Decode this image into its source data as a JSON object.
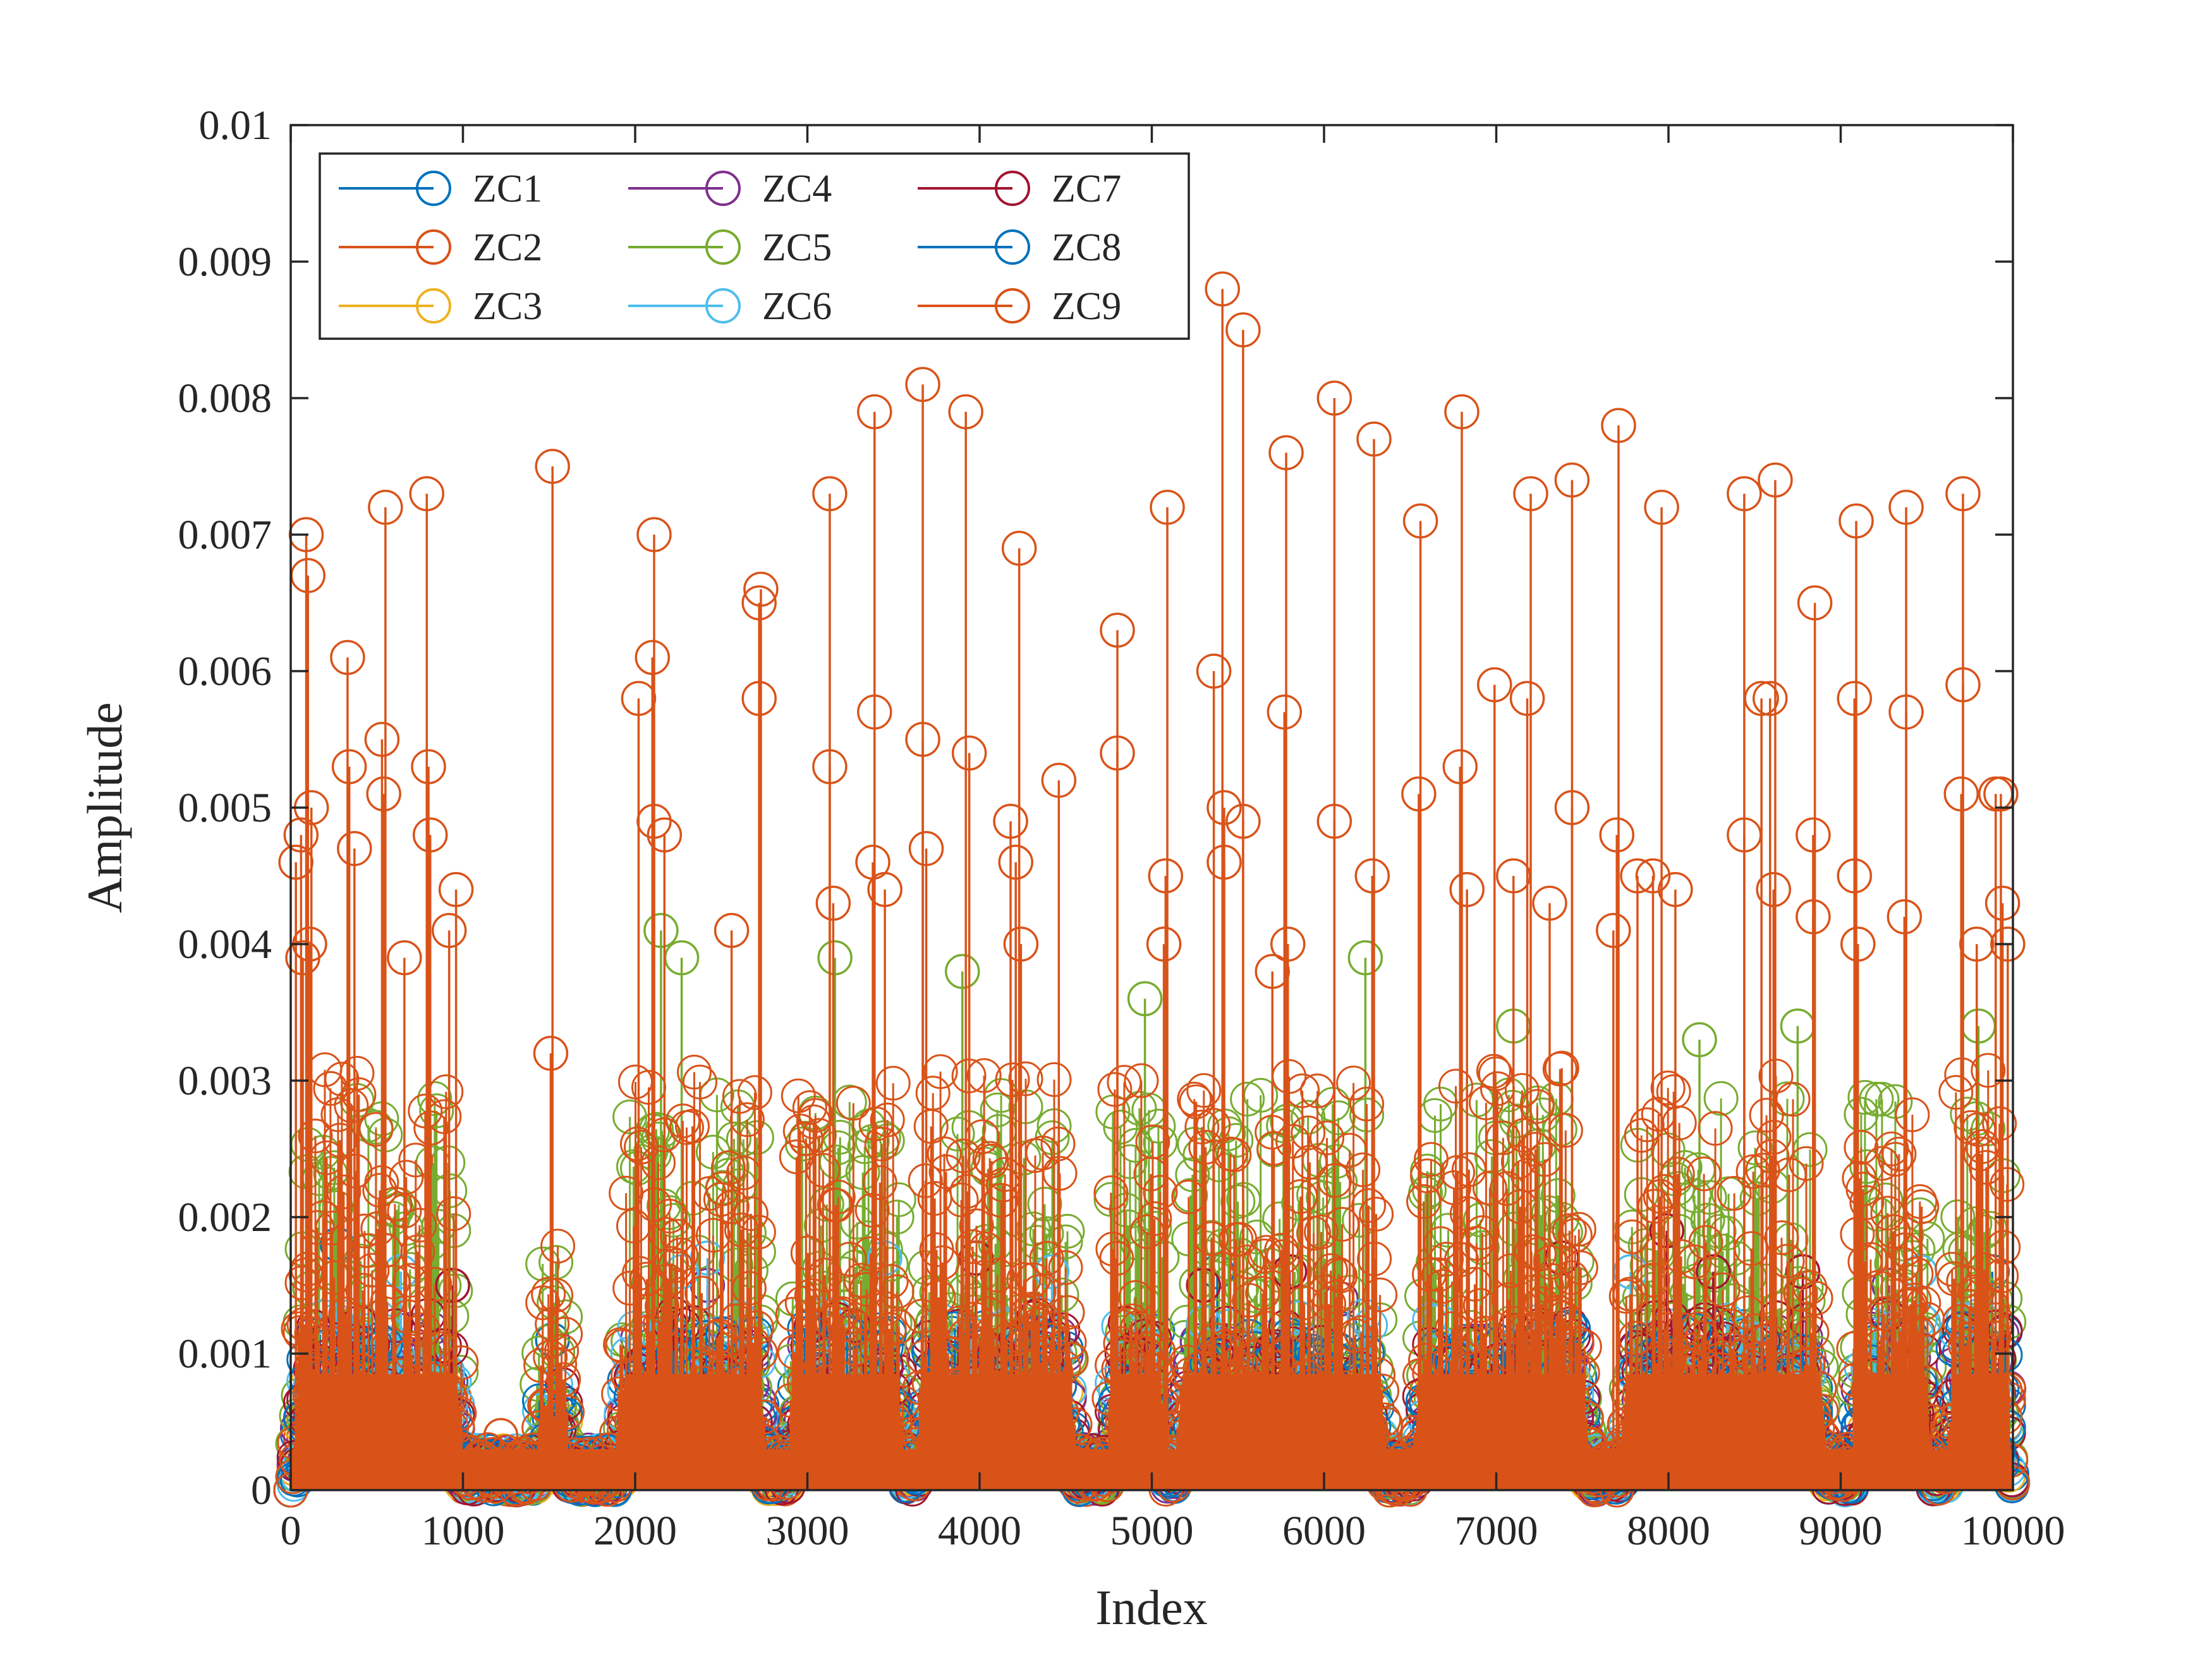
{
  "chart_data": {
    "type": "stem",
    "title": "",
    "xlabel": "Index",
    "ylabel": "Amplitude",
    "xlim": [
      0,
      10000
    ],
    "ylim": [
      0,
      0.01
    ],
    "xticks": [
      0,
      1000,
      2000,
      3000,
      4000,
      5000,
      6000,
      7000,
      8000,
      9000,
      10000
    ],
    "xtick_labels": [
      "0",
      "1000",
      "2000",
      "3000",
      "4000",
      "5000",
      "6000",
      "7000",
      "8000",
      "9000",
      "10000"
    ],
    "yticks": [
      0,
      0.001,
      0.002,
      0.003,
      0.004,
      0.005,
      0.006,
      0.007,
      0.008,
      0.009,
      0.01
    ],
    "ytick_labels": [
      "0",
      "0.001",
      "0.002",
      "0.003",
      "0.004",
      "0.005",
      "0.006",
      "0.007",
      "0.008",
      "0.009",
      "0.01"
    ],
    "grid": false,
    "legend_position": "top-left",
    "legend_columns": 3,
    "active_segments": [
      [
        0,
        1020
      ],
      [
        1420,
        1620
      ],
      [
        1880,
        2780
      ],
      [
        2880,
        3580
      ],
      [
        3620,
        4580
      ],
      [
        4740,
        5080
      ],
      [
        5120,
        6380
      ],
      [
        6500,
        7560
      ],
      [
        7700,
        8940
      ],
      [
        9060,
        9540
      ],
      [
        9620,
        10000
      ]
    ],
    "series": [
      {
        "name": "ZC1",
        "color": "#0072BD",
        "typical_peak": 0.0012,
        "max": 0.0018,
        "peaks": [
          [
            270,
            0.0018
          ],
          [
            1520,
            0.0011
          ],
          [
            5380,
            0.0016
          ],
          [
            9880,
            0.0016
          ]
        ]
      },
      {
        "name": "ZC2",
        "color": "#D95319",
        "typical_peak": 0.0011,
        "max": 0.0013,
        "peaks": []
      },
      {
        "name": "ZC3",
        "color": "#EDB120",
        "typical_peak": 0.0009,
        "max": 0.0011,
        "peaks": []
      },
      {
        "name": "ZC4",
        "color": "#7E2F8E",
        "typical_peak": 0.0012,
        "max": 0.0015,
        "peaks": [
          [
            2420,
            0.0015
          ],
          [
            6100,
            0.0014
          ],
          [
            9280,
            0.0015
          ]
        ]
      },
      {
        "name": "ZC5",
        "color": "#77AC30",
        "typical_peak": 0.0029,
        "max": 0.0041,
        "peaks": [
          [
            2150,
            0.0041
          ],
          [
            2270,
            0.0039
          ],
          [
            3160,
            0.0039
          ],
          [
            3900,
            0.0038
          ],
          [
            4960,
            0.0036
          ],
          [
            6240,
            0.0039
          ],
          [
            7100,
            0.0034
          ],
          [
            8180,
            0.0033
          ],
          [
            8750,
            0.0034
          ],
          [
            9800,
            0.0034
          ]
        ]
      },
      {
        "name": "ZC6",
        "color": "#4DBEEE",
        "typical_peak": 0.0013,
        "max": 0.0017,
        "peaks": [
          [
            640,
            0.0016
          ],
          [
            2270,
            0.0016
          ],
          [
            2420,
            0.0017
          ],
          [
            3450,
            0.0017
          ],
          [
            4420,
            0.0016
          ],
          [
            7780,
            0.0016
          ],
          [
            9460,
            0.0016
          ]
        ]
      },
      {
        "name": "ZC7",
        "color": "#A2142F",
        "typical_peak": 0.0013,
        "max": 0.0019,
        "peaks": [
          [
            940,
            0.0015
          ],
          [
            3980,
            0.0017
          ],
          [
            5300,
            0.0015
          ],
          [
            5800,
            0.0016
          ],
          [
            7380,
            0.0017
          ],
          [
            7990,
            0.0019
          ],
          [
            8260,
            0.0016
          ],
          [
            8780,
            0.0016
          ]
        ]
      },
      {
        "name": "ZC8",
        "color": "#0072BD",
        "typical_peak": 0.0012,
        "max": 0.0015,
        "peaks": []
      },
      {
        "name": "ZC9",
        "color": "#D95319",
        "typical_peak": 0.0031,
        "max": 0.0088,
        "peaks": [
          [
            30,
            0.0046
          ],
          [
            60,
            0.0048
          ],
          [
            90,
            0.007
          ],
          [
            100,
            0.0067
          ],
          [
            70,
            0.0039
          ],
          [
            120,
            0.005
          ],
          [
            110,
            0.004
          ],
          [
            330,
            0.0061
          ],
          [
            340,
            0.0053
          ],
          [
            370,
            0.0047
          ],
          [
            550,
            0.0072
          ],
          [
            530,
            0.0055
          ],
          [
            540,
            0.0051
          ],
          [
            790,
            0.0073
          ],
          [
            800,
            0.0053
          ],
          [
            810,
            0.0048
          ],
          [
            660,
            0.0039
          ],
          [
            960,
            0.0044
          ],
          [
            920,
            0.0041
          ],
          [
            1520,
            0.0075
          ],
          [
            1510,
            0.0032
          ],
          [
            1220,
            0.0004
          ],
          [
            2020,
            0.0058
          ],
          [
            2110,
            0.007
          ],
          [
            2100,
            0.0061
          ],
          [
            2110,
            0.0049
          ],
          [
            2170,
            0.0048
          ],
          [
            2560,
            0.0041
          ],
          [
            2720,
            0.0065
          ],
          [
            2730,
            0.0066
          ],
          [
            2720,
            0.0058
          ],
          [
            3130,
            0.0073
          ],
          [
            3130,
            0.0053
          ],
          [
            3150,
            0.0043
          ],
          [
            3390,
            0.0079
          ],
          [
            3390,
            0.0057
          ],
          [
            3380,
            0.0046
          ],
          [
            3450,
            0.0044
          ],
          [
            3670,
            0.0081
          ],
          [
            3670,
            0.0055
          ],
          [
            3690,
            0.0047
          ],
          [
            3920,
            0.0079
          ],
          [
            3940,
            0.0054
          ],
          [
            4230,
            0.0069
          ],
          [
            4210,
            0.0046
          ],
          [
            4180,
            0.0049
          ],
          [
            4240,
            0.004
          ],
          [
            4460,
            0.0052
          ],
          [
            4800,
            0.0063
          ],
          [
            4800,
            0.0054
          ],
          [
            5090,
            0.0072
          ],
          [
            5080,
            0.0045
          ],
          [
            5070,
            0.004
          ],
          [
            5360,
            0.006
          ],
          [
            5410,
            0.0088
          ],
          [
            5420,
            0.005
          ],
          [
            5420,
            0.0046
          ],
          [
            5530,
            0.0085
          ],
          [
            5530,
            0.0049
          ],
          [
            5780,
            0.0076
          ],
          [
            5770,
            0.0057
          ],
          [
            5790,
            0.004
          ],
          [
            5700,
            0.0038
          ],
          [
            6060,
            0.008
          ],
          [
            6060,
            0.0049
          ],
          [
            6290,
            0.0077
          ],
          [
            6280,
            0.0045
          ],
          [
            6560,
            0.0071
          ],
          [
            6550,
            0.0051
          ],
          [
            6800,
            0.0079
          ],
          [
            6790,
            0.0053
          ],
          [
            6830,
            0.0044
          ],
          [
            6990,
            0.0059
          ],
          [
            7100,
            0.0045
          ],
          [
            7200,
            0.0073
          ],
          [
            7180,
            0.0058
          ],
          [
            7310,
            0.0043
          ],
          [
            7440,
            0.0074
          ],
          [
            7440,
            0.005
          ],
          [
            7710,
            0.0078
          ],
          [
            7700,
            0.0048
          ],
          [
            7680,
            0.0041
          ],
          [
            7820,
            0.0045
          ],
          [
            7910,
            0.0045
          ],
          [
            7960,
            0.0072
          ],
          [
            8040,
            0.0044
          ],
          [
            8440,
            0.0073
          ],
          [
            8440,
            0.0048
          ],
          [
            8540,
            0.0058
          ],
          [
            8590,
            0.0058
          ],
          [
            8620,
            0.0074
          ],
          [
            8610,
            0.0044
          ],
          [
            8850,
            0.0065
          ],
          [
            8840,
            0.0048
          ],
          [
            8840,
            0.0042
          ],
          [
            9090,
            0.0071
          ],
          [
            9080,
            0.0058
          ],
          [
            9080,
            0.0045
          ],
          [
            9100,
            0.004
          ],
          [
            9380,
            0.0072
          ],
          [
            9380,
            0.0057
          ],
          [
            9370,
            0.0042
          ],
          [
            9710,
            0.0073
          ],
          [
            9710,
            0.0059
          ],
          [
            9700,
            0.0051
          ],
          [
            9790,
            0.004
          ],
          [
            9900,
            0.0051
          ],
          [
            9930,
            0.0051
          ],
          [
            9940,
            0.0043
          ],
          [
            9970,
            0.004
          ]
        ]
      }
    ]
  }
}
